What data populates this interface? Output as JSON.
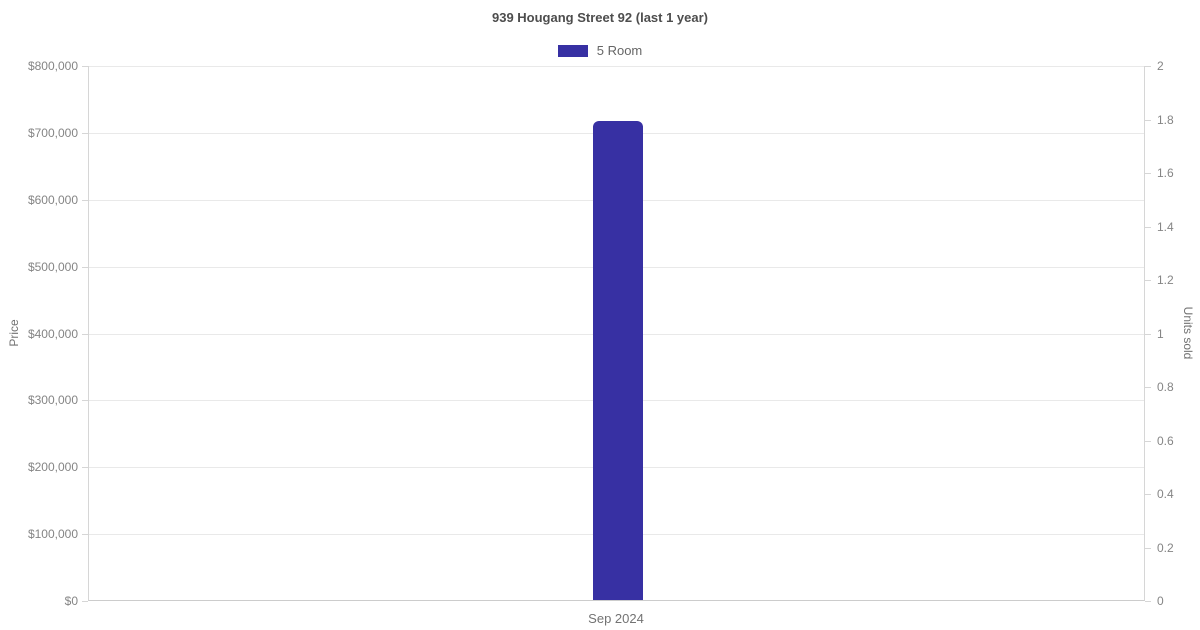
{
  "chart_data": {
    "type": "bar",
    "title": "939 Hougang Street 92 (last 1 year)",
    "categories": [
      "Sep 2024"
    ],
    "series": [
      {
        "name": "5 Room",
        "color": "#3730a3",
        "axis": "left",
        "values": [
          717000
        ]
      }
    ],
    "left_axis": {
      "label": "Price",
      "min": 0,
      "max": 800000,
      "step": 100000,
      "tick_labels": [
        "$0",
        "$100,000",
        "$200,000",
        "$300,000",
        "$400,000",
        "$500,000",
        "$600,000",
        "$700,000",
        "$800,000"
      ]
    },
    "right_axis": {
      "label": "Units sold",
      "min": 0,
      "max": 2,
      "step": 0.2,
      "tick_labels": [
        "0",
        "0.2",
        "0.4",
        "0.6",
        "0.8",
        "1",
        "1.2",
        "1.4",
        "1.6",
        "1.8",
        "2"
      ]
    },
    "legend": {
      "position": "top",
      "items": [
        {
          "label": "5 Room",
          "color": "#3730a3"
        }
      ]
    },
    "grid": true,
    "background": "#ffffff"
  }
}
